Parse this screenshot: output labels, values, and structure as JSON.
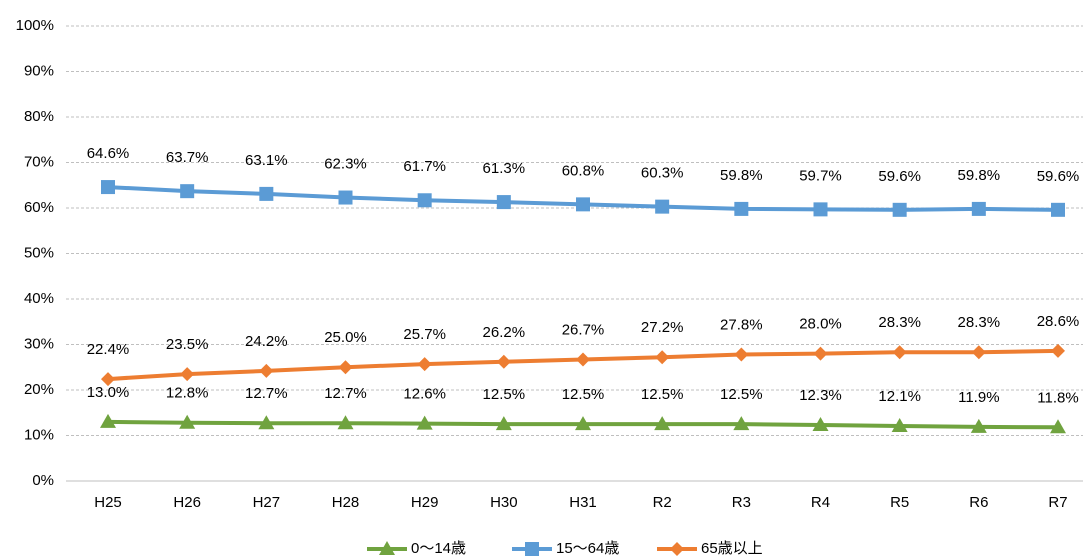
{
  "chart_data": {
    "type": "line",
    "categories": [
      "H25",
      "H26",
      "H27",
      "H28",
      "H29",
      "H30",
      "H31",
      "R2",
      "R3",
      "R4",
      "R5",
      "R6",
      "R7"
    ],
    "series": [
      {
        "name": "0〜14歳",
        "color": "#70a33f",
        "marker": "triangle",
        "values": [
          13.0,
          12.8,
          12.7,
          12.7,
          12.6,
          12.5,
          12.5,
          12.5,
          12.5,
          12.3,
          12.1,
          11.9,
          11.8
        ],
        "value_labels": [
          "13.0%",
          "12.8%",
          "12.7%",
          "12.7%",
          "12.6%",
          "12.5%",
          "12.5%",
          "12.5%",
          "12.5%",
          "12.3%",
          "12.1%",
          "11.9%",
          "11.8%"
        ]
      },
      {
        "name": "15〜64歳",
        "color": "#5b9bd5",
        "marker": "square",
        "values": [
          64.6,
          63.7,
          63.1,
          62.3,
          61.7,
          61.3,
          60.8,
          60.3,
          59.8,
          59.7,
          59.6,
          59.8,
          59.6
        ],
        "value_labels": [
          "64.6%",
          "63.7%",
          "63.1%",
          "62.3%",
          "61.7%",
          "61.3%",
          "60.8%",
          "60.3%",
          "59.8%",
          "59.7%",
          "59.6%",
          "59.8%",
          "59.6%"
        ]
      },
      {
        "name": "65歳以上",
        "color": "#ed7d31",
        "marker": "diamond",
        "values": [
          22.4,
          23.5,
          24.2,
          25.0,
          25.7,
          26.2,
          26.7,
          27.2,
          27.8,
          28.0,
          28.3,
          28.3,
          28.6
        ],
        "value_labels": [
          "22.4%",
          "23.5%",
          "24.2%",
          "25.0%",
          "25.7%",
          "26.2%",
          "26.7%",
          "27.2%",
          "27.8%",
          "28.0%",
          "28.3%",
          "28.3%",
          "28.6%"
        ]
      }
    ],
    "ylim": [
      0,
      100
    ],
    "yticks": [
      {
        "value": 0,
        "label": "0%"
      },
      {
        "value": 10,
        "label": "10%"
      },
      {
        "value": 20,
        "label": "20%"
      },
      {
        "value": 30,
        "label": "30%"
      },
      {
        "value": 40,
        "label": "40%"
      },
      {
        "value": 50,
        "label": "50%"
      },
      {
        "value": 60,
        "label": "60%"
      },
      {
        "value": 70,
        "label": "70%"
      },
      {
        "value": 80,
        "label": "80%"
      },
      {
        "value": 90,
        "label": "90%"
      },
      {
        "value": 100,
        "label": "100%"
      }
    ],
    "grid": true,
    "legend": "bottom"
  }
}
